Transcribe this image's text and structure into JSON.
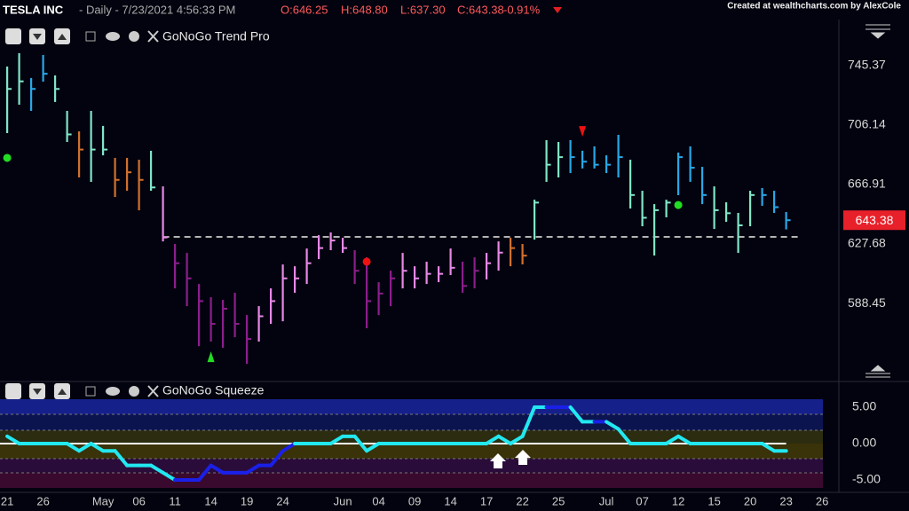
{
  "chart_data": [
    {
      "type": "ohlc",
      "header": {
        "symbol": "TESLA INC",
        "info": "- Daily - 7/23/2021 4:56:33 PM",
        "open": "O:646.25",
        "high": "H:648.80",
        "low": "L:637.30",
        "close": "C:643.38",
        "change": "-0.91%"
      },
      "credit": "Created at wealthcharts.com by AlexCole",
      "indicator": "GoNoGo Trend Pro",
      "xlim": [
        -0.6,
        69.4
      ],
      "ylim": [
        539.9,
        775.8
      ],
      "yticks": [
        588.45,
        627.68,
        666.91,
        706.14,
        745.37
      ],
      "high": [
        744.8,
        753.6,
        737.2,
        752.4,
        738.9,
        715.5,
        702.0,
        715.5,
        705.6,
        684.5,
        684.5,
        683.3,
        689.2,
        665.7,
        627.7,
        621.8,
        601.3,
        592.6,
        590.8,
        595.5,
        580.8,
        586.7,
        598.4,
        614.2,
        613.0,
        624.7,
        633.5,
        635.3,
        631.8,
        623.6,
        618.9,
        602.5,
        610.1,
        621.8,
        613.0,
        616.0,
        613.0,
        624.7,
        616.0,
        618.9,
        621.8,
        629.4,
        631.8,
        627.7,
        656.9,
        696.2,
        695.0,
        696.2,
        689.2,
        692.1,
        686.2,
        699.7,
        683.3,
        662.8,
        654.0,
        656.9,
        688.0,
        692.1,
        678.6,
        665.7,
        655.2,
        648.2,
        662.8,
        664.6,
        662.8,
        648.8
      ],
      "low": [
        700.9,
        719.6,
        715.5,
        734.8,
        721.4,
        695.0,
        671.6,
        668.7,
        686.2,
        658.7,
        662.8,
        649.9,
        662.8,
        629.4,
        598.4,
        586.7,
        560.3,
        563.3,
        559.2,
        566.2,
        548.6,
        563.3,
        575.0,
        576.7,
        595.5,
        601.3,
        617.7,
        623.6,
        621.8,
        601.3,
        572.1,
        580.8,
        586.7,
        598.4,
        598.4,
        601.3,
        602.5,
        607.2,
        595.5,
        598.4,
        604.3,
        610.1,
        613.0,
        614.2,
        630.6,
        668.7,
        671.6,
        674.5,
        677.5,
        677.5,
        674.5,
        671.6,
        651.1,
        639.4,
        620.1,
        645.3,
        659.9,
        668.7,
        654.0,
        637.6,
        642.3,
        621.8,
        639.4,
        652.9,
        648.2,
        637.3
      ],
      "close": [
        730,
        735,
        730,
        740,
        730,
        700,
        690,
        690,
        690,
        670,
        675,
        670,
        665,
        632,
        615,
        605,
        590,
        575,
        585,
        575,
        565,
        580,
        590,
        605,
        605,
        615,
        625,
        630,
        625,
        610,
        590,
        595,
        605,
        610,
        605,
        608,
        608,
        612,
        600,
        610,
        615,
        622,
        625,
        620,
        655,
        680,
        685,
        685,
        682,
        680,
        680,
        685,
        660,
        645,
        650,
        655,
        685,
        678,
        660,
        650,
        648,
        640,
        660,
        660,
        652,
        643.38
      ],
      "colors": [
        "#80e6c8",
        "#80e6c8",
        "#28a8e8",
        "#28a8e8",
        "#80e6c8",
        "#80e6c8",
        "#d2702c",
        "#80e6c8",
        "#80e6c8",
        "#d2702c",
        "#d2702c",
        "#d2702c",
        "#80e6c8",
        "#e888e8",
        "#8c1e8c",
        "#8c1e8c",
        "#8c1e8c",
        "#8c1e8c",
        "#8c1e8c",
        "#8c1e8c",
        "#8c1e8c",
        "#e888e8",
        "#e888e8",
        "#e888e8",
        "#e888e8",
        "#e888e8",
        "#e888e8",
        "#e888e8",
        "#e888e8",
        "#8c1e8c",
        "#8c1e8c",
        "#8c1e8c",
        "#8c1e8c",
        "#e888e8",
        "#e888e8",
        "#e888e8",
        "#e888e8",
        "#e888e8",
        "#8c1e8c",
        "#8c1e8c",
        "#e888e8",
        "#e888e8",
        "#d2702c",
        "#d2702c",
        "#80e6c8",
        "#80e6c8",
        "#80e6c8",
        "#28a8e8",
        "#28a8e8",
        "#28a8e8",
        "#28a8e8",
        "#28a8e8",
        "#80e6c8",
        "#80e6c8",
        "#80e6c8",
        "#80e6c8",
        "#28a8e8",
        "#28a8e8",
        "#28a8e8",
        "#80e6c8",
        "#80e6c8",
        "#80e6c8",
        "#80e6c8",
        "#28a8e8",
        "#28a8e8",
        "#28a8e8"
      ],
      "last_price_color": "#e8202a",
      "support_line": {
        "value": 632.4,
        "from": 13,
        "to": 66
      },
      "signals": [
        {
          "index": 0,
          "value": 684.5,
          "shape": "circle",
          "color": "#22dd22"
        },
        {
          "index": 17,
          "value": 553.3,
          "shape": "up",
          "color": "#22dd22"
        },
        {
          "index": 30,
          "value": 616.0,
          "shape": "circle",
          "color": "#ee1111"
        },
        {
          "index": 48,
          "value": 702.0,
          "shape": "down",
          "color": "#ee1111"
        },
        {
          "index": 56,
          "value": 653.4,
          "shape": "circle",
          "color": "#22dd22"
        }
      ]
    },
    {
      "type": "squeeze",
      "indicator": "GoNoGo Squeeze",
      "xlim": [
        -0.6,
        69.4
      ],
      "ylim": [
        -6.34,
        6.1
      ],
      "yticks": [
        {
          "value": 5,
          "label": "5.00"
        },
        {
          "value": 0,
          "label": "0.00"
        },
        {
          "value": -5,
          "label": "-5.00"
        }
      ],
      "values": [
        1,
        0,
        0,
        0,
        0,
        0,
        -1,
        0,
        -1,
        -1,
        -3,
        -3,
        -3,
        -4,
        -5,
        -5,
        -5,
        -3,
        -4,
        -4,
        -4,
        -3,
        -3,
        -1,
        0,
        0,
        0,
        0,
        1,
        1,
        -1,
        0,
        0,
        0,
        0,
        0,
        0,
        0,
        0,
        0,
        0,
        1,
        0,
        1,
        5,
        5,
        5,
        5,
        3,
        3,
        3,
        2,
        0,
        0,
        0,
        0,
        1,
        0,
        0,
        0,
        0,
        0,
        0,
        0,
        -1,
        -1
      ],
      "point_colors": [
        "#22e8f0",
        "#22e8f0",
        "#22e8f0",
        "#22e8f0",
        "#22e8f0",
        "#22e8f0",
        "#22e8f0",
        "#22e8f0",
        "#22e8f0",
        "#22e8f0",
        "#22e8f0",
        "#22e8f0",
        "#22e8f0",
        "#22e8f0",
        "#1a20e8",
        "#1a20e8",
        "#1a20e8",
        "#1a20e8",
        "#1a20e8",
        "#1a20e8",
        "#1a20e8",
        "#1a20e8",
        "#1a20e8",
        "#1a20e8",
        "#22e8f0",
        "#22e8f0",
        "#22e8f0",
        "#22e8f0",
        "#22e8f0",
        "#22e8f0",
        "#22e8f0",
        "#22e8f0",
        "#22e8f0",
        "#22e8f0",
        "#22e8f0",
        "#22e8f0",
        "#22e8f0",
        "#22e8f0",
        "#22e8f0",
        "#22e8f0",
        "#22e8f0",
        "#22e8f0",
        "#22e8f0",
        "#22e8f0",
        "#22e8f0",
        "#1a20e8",
        "#1a20e8",
        "#22e8f0",
        "#22e8f0",
        "#1a20e8",
        "#22e8f0",
        "#22e8f0",
        "#22e8f0",
        "#22e8f0",
        "#22e8f0",
        "#22e8f0",
        "#22e8f0",
        "#22e8f0",
        "#22e8f0",
        "#22e8f0",
        "#22e8f0",
        "#22e8f0",
        "#22e8f0",
        "#22e8f0",
        "#22e8f0",
        "#22e8f0"
      ],
      "xticks": [
        {
          "value": 0,
          "label": "21"
        },
        {
          "value": 3,
          "label": "26"
        },
        {
          "value": 8,
          "label": "May"
        },
        {
          "value": 11,
          "label": "06"
        },
        {
          "value": 14,
          "label": "11"
        },
        {
          "value": 17,
          "label": "14"
        },
        {
          "value": 20,
          "label": "19"
        },
        {
          "value": 23,
          "label": "24"
        },
        {
          "value": 28,
          "label": "Jun"
        },
        {
          "value": 31,
          "label": "04"
        },
        {
          "value": 34,
          "label": "09"
        },
        {
          "value": 37,
          "label": "14"
        },
        {
          "value": 40,
          "label": "17"
        },
        {
          "value": 43,
          "label": "22"
        },
        {
          "value": 46,
          "label": "25"
        },
        {
          "value": 50,
          "label": "Jul"
        },
        {
          "value": 53,
          "label": "07"
        },
        {
          "value": 56,
          "label": "12"
        },
        {
          "value": 59,
          "label": "15"
        },
        {
          "value": 62,
          "label": "20"
        },
        {
          "value": 65,
          "label": "23"
        },
        {
          "value": 68,
          "label": "26"
        }
      ]
    }
  ]
}
